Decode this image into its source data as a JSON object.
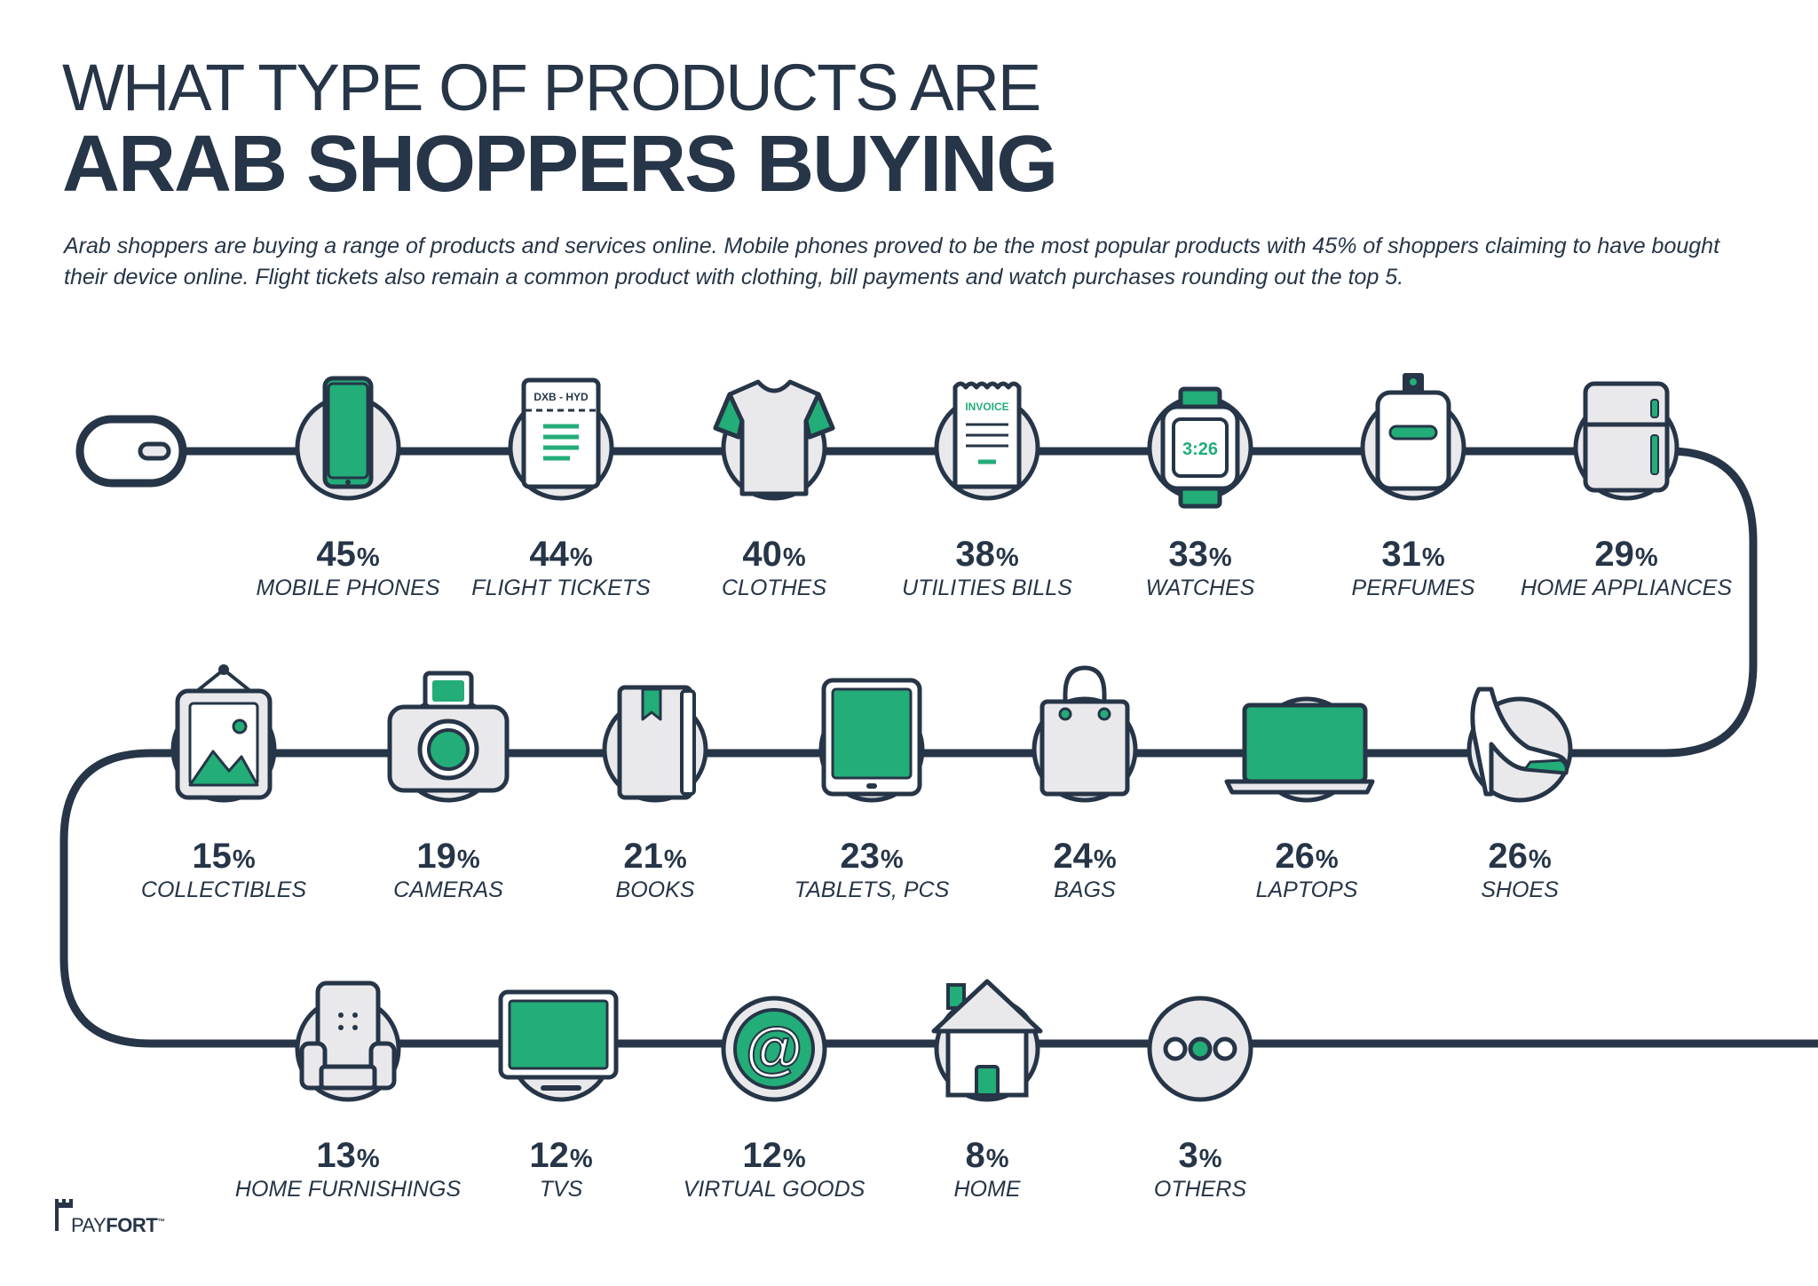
{
  "title": {
    "line1": "WHAT TYPE OF PRODUCTS ARE",
    "line2": "ARAB SHOPPERS BUYING"
  },
  "intro": "Arab shoppers are buying a range of products and services online. Mobile phones proved to be the most popular products with 45% of shoppers claiming to have bought their device online.  Flight tickets also remain a common product with clothing, bill payments and watch purchases rounding out the top 5.",
  "colors": {
    "navy": "#263547",
    "green": "#23ad78",
    "light_gray": "#e9e9ec",
    "white": "#ffffff"
  },
  "items": [
    {
      "pct": "45",
      "unit": "%",
      "label": "MOBILE PHONES",
      "icon": "mobile-phone-icon"
    },
    {
      "pct": "44",
      "unit": "%",
      "label": "FLIGHT TICKETS",
      "icon": "flight-ticket-icon",
      "ticket_text": "DXB - HYD"
    },
    {
      "pct": "40",
      "unit": "%",
      "label": "CLOTHES",
      "icon": "t-shirt-icon"
    },
    {
      "pct": "38",
      "unit": "%",
      "label": "UTILITIES BILLS",
      "icon": "invoice-icon",
      "invoice_text": "INVOICE"
    },
    {
      "pct": "33",
      "unit": "%",
      "label": "WATCHES",
      "icon": "watch-icon",
      "watch_time": "3:26"
    },
    {
      "pct": "31",
      "unit": "%",
      "label": "PERFUMES",
      "icon": "perfume-icon"
    },
    {
      "pct": "29",
      "unit": "%",
      "label": "HOME APPLIANCES",
      "icon": "fridge-icon"
    },
    {
      "pct": "26",
      "unit": "%",
      "label": "SHOES",
      "icon": "high-heel-shoe-icon"
    },
    {
      "pct": "26",
      "unit": "%",
      "label": "LAPTOPS",
      "icon": "laptop-icon"
    },
    {
      "pct": "24",
      "unit": "%",
      "label": "BAGS",
      "icon": "shopping-bag-icon"
    },
    {
      "pct": "23",
      "unit": "%",
      "label": "TABLETS, PCS",
      "icon": "tablet-icon"
    },
    {
      "pct": "21",
      "unit": "%",
      "label": "BOOKS",
      "icon": "book-icon"
    },
    {
      "pct": "19",
      "unit": "%",
      "label": "CAMERAS",
      "icon": "camera-icon"
    },
    {
      "pct": "15",
      "unit": "%",
      "label": "COLLECTIBLES",
      "icon": "picture-frame-icon"
    },
    {
      "pct": "13",
      "unit": "%",
      "label": "HOME FURNISHINGS",
      "icon": "armchair-icon"
    },
    {
      "pct": "12",
      "unit": "%",
      "label": "TVS",
      "icon": "tv-icon"
    },
    {
      "pct": "12",
      "unit": "%",
      "label": "VIRTUAL GOODS",
      "icon": "at-sign-icon",
      "at_symbol": "@"
    },
    {
      "pct": "8",
      "unit": "%",
      "label": "HOME",
      "icon": "house-icon"
    },
    {
      "pct": "3",
      "unit": "%",
      "label": "OTHERS",
      "icon": "ellipsis-dots-icon"
    }
  ],
  "logo": {
    "brand_part1": "PAY",
    "brand_part2": "FORT",
    "mark": "™"
  }
}
